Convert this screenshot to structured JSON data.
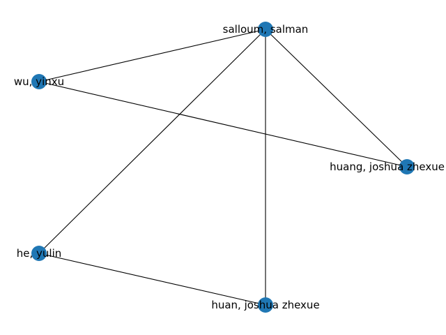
{
  "graph": {
    "node_color": "#1f77b4",
    "edge_color": "#000000",
    "nodes": [
      {
        "id": "salloum",
        "label": "salloum, salman"
      },
      {
        "id": "wu",
        "label": "wu, yinxu"
      },
      {
        "id": "huang",
        "label": "huang, joshua zhexue"
      },
      {
        "id": "he",
        "label": "he, yulin"
      },
      {
        "id": "huan",
        "label": "huan, joshua zhexue"
      }
    ],
    "edges": [
      {
        "source": "salloum",
        "target": "wu"
      },
      {
        "source": "salloum",
        "target": "he"
      },
      {
        "source": "salloum",
        "target": "huan"
      },
      {
        "source": "salloum",
        "target": "huang"
      },
      {
        "source": "wu",
        "target": "huang"
      },
      {
        "source": "he",
        "target": "huan"
      }
    ]
  }
}
